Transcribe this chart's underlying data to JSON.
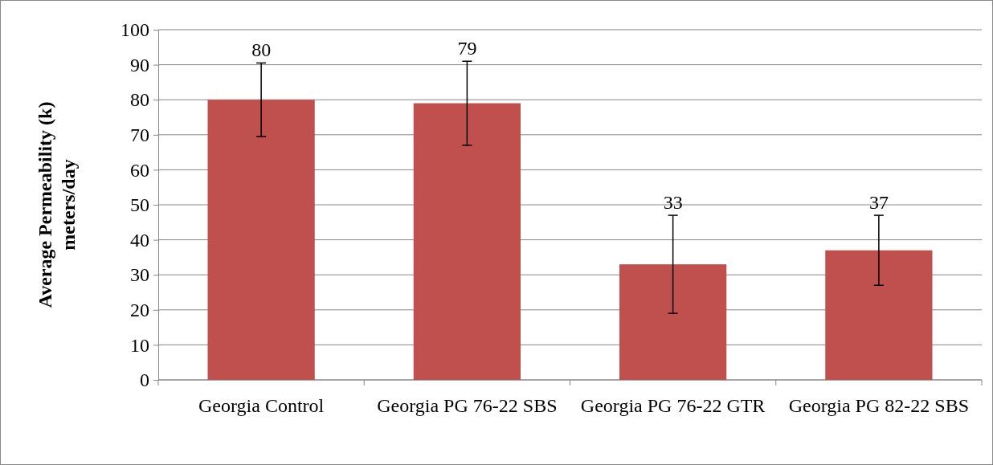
{
  "chart_data": {
    "type": "bar",
    "ylabel": "Average Permeability (k)\nmeters/day",
    "categories": [
      "Georgia Control",
      "Georgia PG 76-22 SBS",
      "Georgia PG 76-22 GTR",
      "Georgia PG 82-22 SBS"
    ],
    "values": [
      80,
      79,
      33,
      37
    ],
    "errors": [
      10.5,
      12,
      14,
      10
    ],
    "color": "#c0504d",
    "ylim": [
      0,
      100
    ],
    "yticks": [
      0,
      10,
      20,
      30,
      40,
      50,
      60,
      70,
      80,
      90,
      100
    ],
    "grid": "y",
    "data_labels": true
  }
}
